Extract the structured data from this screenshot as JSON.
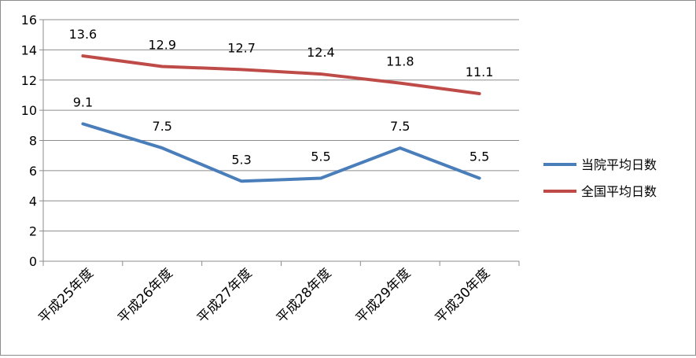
{
  "chart_data": {
    "type": "line",
    "title": "",
    "xlabel": "",
    "ylabel": "",
    "categories": [
      "平成25年度",
      "平成26年度",
      "平成27年度",
      "平成28年度",
      "平成29年度",
      "平成30年度"
    ],
    "ylim": [
      0,
      16
    ],
    "yticks": [
      0,
      2,
      4,
      6,
      8,
      10,
      12,
      14,
      16
    ],
    "grid": true,
    "legend": "right",
    "series": [
      {
        "name": "当院平均日数",
        "color": "#4a7ebb",
        "values": [
          9.1,
          7.5,
          5.3,
          5.5,
          7.5,
          5.5
        ]
      },
      {
        "name": "全国平均日数",
        "color": "#be4b48",
        "values": [
          13.6,
          12.9,
          12.7,
          12.4,
          11.8,
          11.1
        ]
      }
    ]
  }
}
